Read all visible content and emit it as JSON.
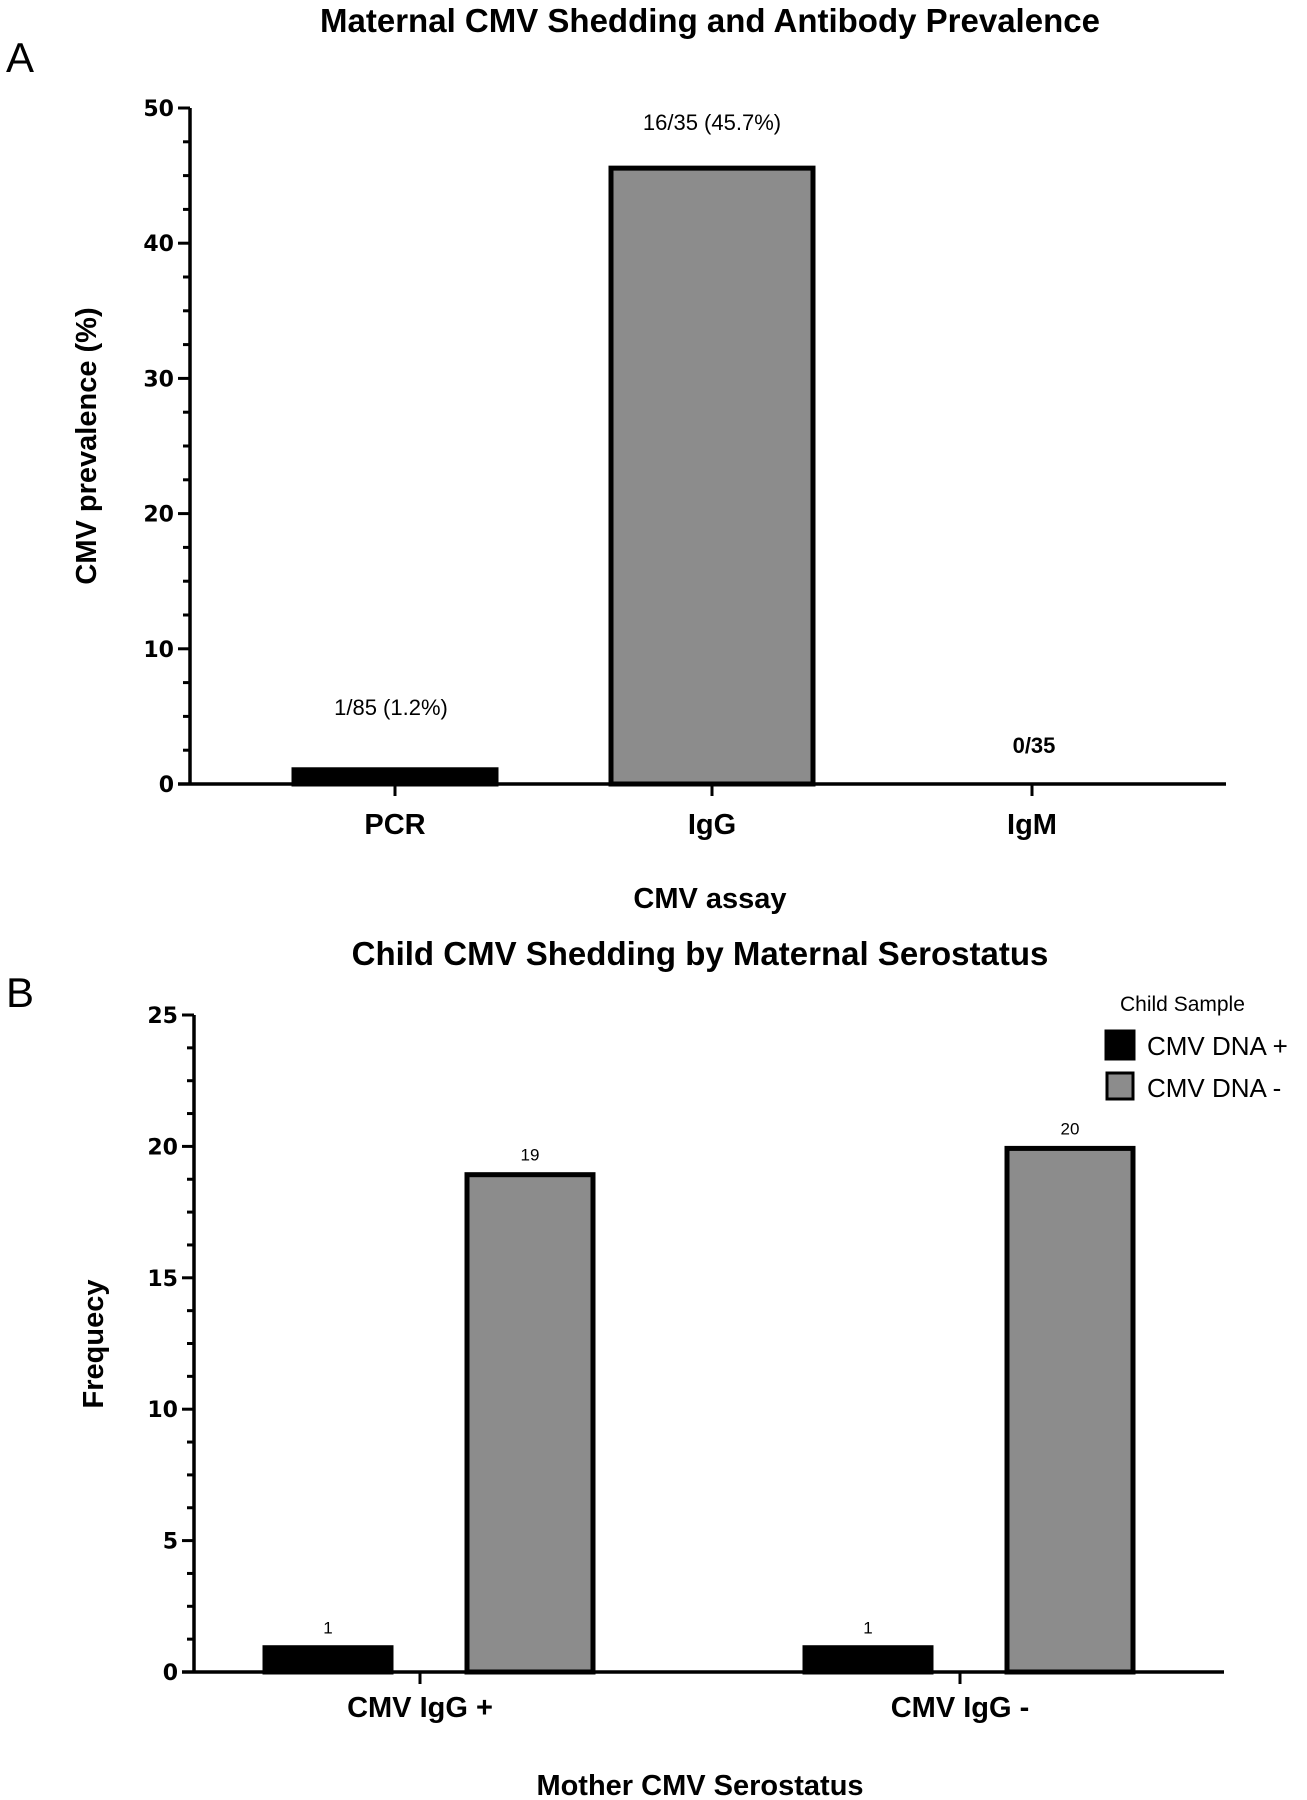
{
  "chart_data": [
    {
      "panel": "A",
      "type": "bar",
      "title": "Maternal CMV Shedding and Antibody Prevalence",
      "xlabel": "CMV assay",
      "ylabel": "CMV prevalence (%)",
      "ylim": [
        0,
        50
      ],
      "yticks": [
        0,
        10,
        20,
        30,
        40,
        50
      ],
      "categories": [
        "PCR",
        "IgG",
        "IgM"
      ],
      "values": [
        1.2,
        45.7,
        0
      ],
      "colors": [
        "#000000",
        "#8c8c8c",
        "#8c8c8c"
      ],
      "data_labels": [
        "1/85 (1.2%)",
        "16/35 (45.7%)",
        "0/35"
      ],
      "grid": false,
      "legend": null
    },
    {
      "panel": "B",
      "type": "bar",
      "title": "Child CMV Shedding by Maternal Serostatus",
      "xlabel": "Mother CMV Serostatus",
      "ylabel": "Frequecy",
      "ylim": [
        0,
        25
      ],
      "yticks": [
        0,
        5,
        10,
        15,
        20,
        25
      ],
      "categories": [
        "CMV IgG +",
        "CMV IgG -"
      ],
      "series": [
        {
          "name": "CMV DNA +",
          "color": "#000000",
          "values": [
            1,
            1
          ]
        },
        {
          "name": "CMV DNA -",
          "color": "#8c8c8c",
          "values": [
            19,
            20
          ]
        }
      ],
      "data_labels": [
        [
          "1",
          "1"
        ],
        [
          "19",
          "20"
        ]
      ],
      "legend_title": "Child Sample",
      "legend_position": "top-right",
      "grid": false
    }
  ]
}
